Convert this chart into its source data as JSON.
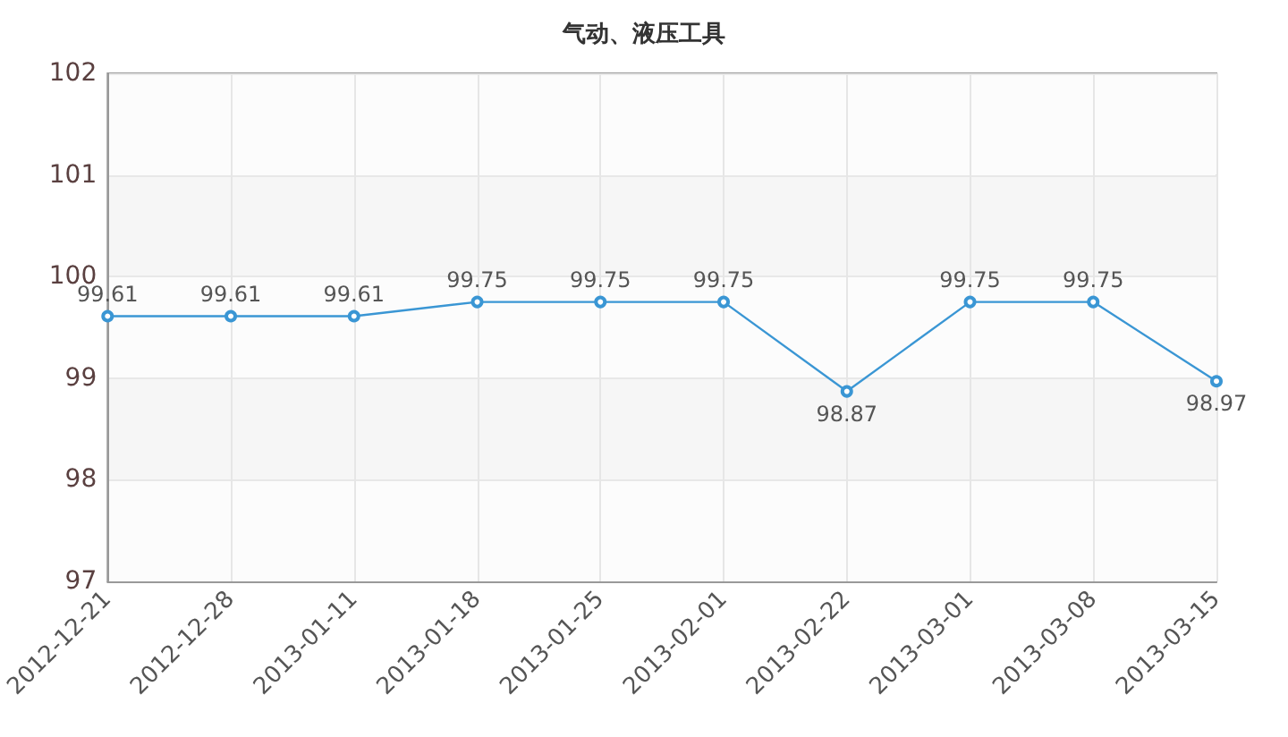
{
  "chart_data": {
    "type": "line",
    "title": "气动、液压工具",
    "categories": [
      "2012-12-21",
      "2012-12-28",
      "2013-01-11",
      "2013-01-18",
      "2013-01-25",
      "2013-02-01",
      "2013-02-22",
      "2013-03-01",
      "2013-03-08",
      "2013-03-15"
    ],
    "series": [
      {
        "color": "#3a96d4",
        "values": [
          99.61,
          99.61,
          99.61,
          99.75,
          99.75,
          99.75,
          98.87,
          99.75,
          99.75,
          98.97
        ]
      }
    ],
    "ylim": [
      97,
      102
    ],
    "yticks": [
      97,
      98,
      99,
      100,
      101,
      102
    ],
    "grid": true,
    "marker": "circle",
    "line_style": "solid",
    "data_labels": true
  }
}
